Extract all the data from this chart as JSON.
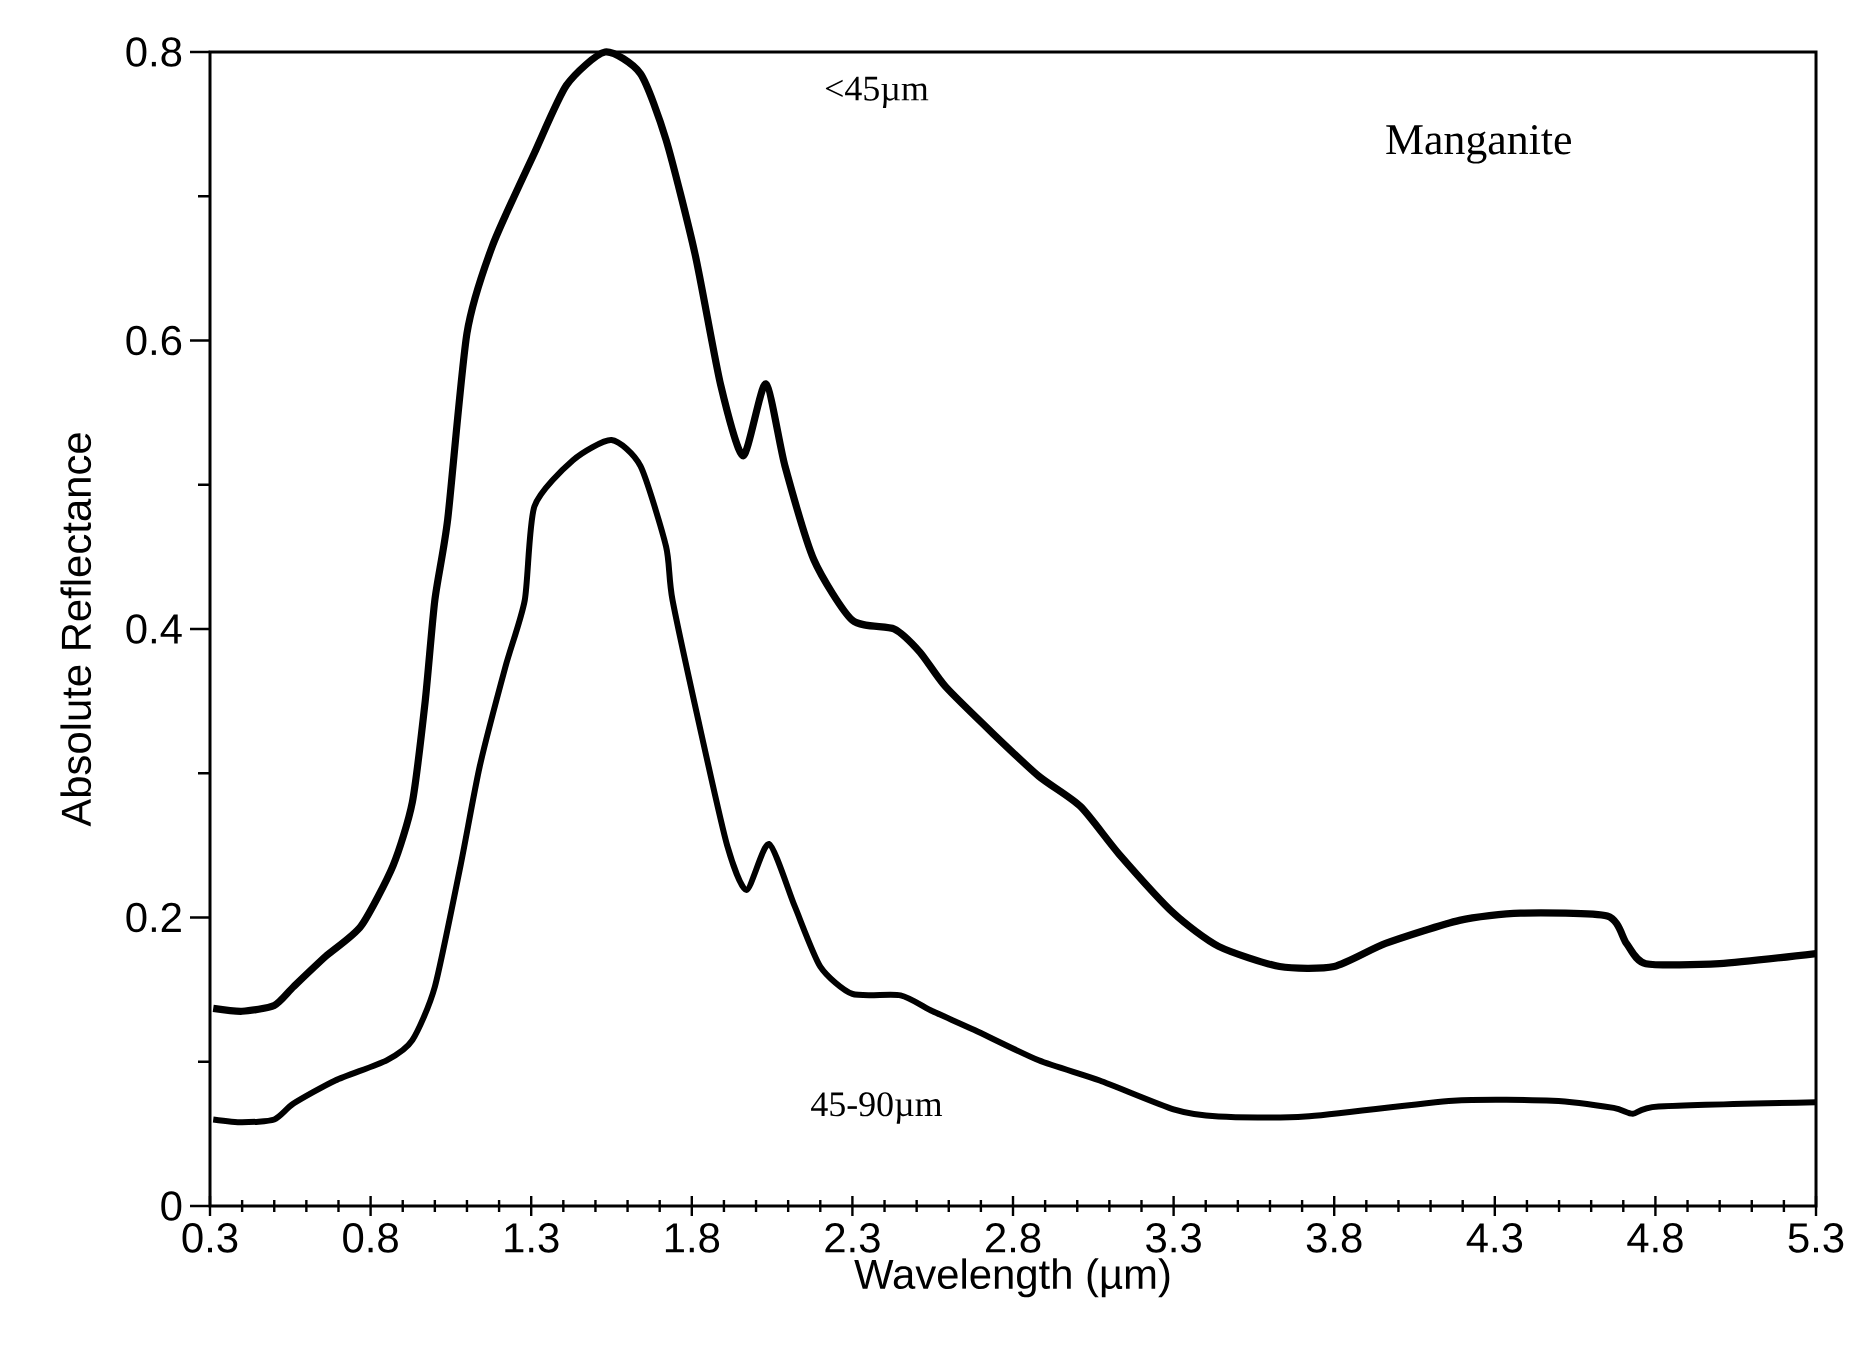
{
  "chart_data": {
    "type": "line",
    "xlabel": "Wavelength (µm)",
    "ylabel": "Absolute Reflectance",
    "xlim": [
      0.3,
      5.3
    ],
    "ylim": [
      0,
      0.8
    ],
    "xticks": [
      0.3,
      0.8,
      1.3,
      1.8,
      2.3,
      2.8,
      3.3,
      3.8,
      4.3,
      4.8,
      5.3
    ],
    "yticks": [
      0,
      0.2,
      0.4,
      0.6,
      0.8
    ],
    "grid": false,
    "marker": "none",
    "line_style": "solid",
    "series": [
      {
        "color": "#000000",
        "x": [
          0.31,
          0.4,
          0.5,
          0.56,
          0.66,
          0.77,
          0.87,
          0.93,
          0.97,
          1.0,
          1.04,
          1.1,
          1.18,
          1.31,
          1.41,
          1.53,
          1.64,
          1.72,
          1.81,
          1.89,
          1.96,
          2.03,
          2.09,
          2.18,
          2.3,
          2.43,
          2.51,
          2.59,
          2.74,
          2.88,
          3.01,
          3.13,
          3.3,
          3.44,
          3.63,
          3.8,
          3.96,
          4.19,
          4.38,
          4.65,
          4.71,
          4.77,
          5.0,
          5.3
        ],
        "values": [
          0.137,
          0.135,
          0.139,
          0.152,
          0.173,
          0.194,
          0.236,
          0.28,
          0.35,
          0.42,
          0.476,
          0.605,
          0.666,
          0.73,
          0.777,
          0.8,
          0.785,
          0.739,
          0.66,
          0.569,
          0.52,
          0.57,
          0.513,
          0.448,
          0.406,
          0.4,
          0.384,
          0.36,
          0.327,
          0.298,
          0.277,
          0.244,
          0.203,
          0.18,
          0.166,
          0.166,
          0.182,
          0.198,
          0.203,
          0.201,
          0.182,
          0.168,
          0.168,
          0.175
        ]
      },
      {
        "color": "#000000",
        "x": [
          0.31,
          0.4,
          0.5,
          0.56,
          0.69,
          0.85,
          0.93,
          1.0,
          1.08,
          1.14,
          1.22,
          1.28,
          1.31,
          1.43,
          1.55,
          1.64,
          1.72,
          1.74,
          1.83,
          1.91,
          1.97,
          2.04,
          2.12,
          2.2,
          2.3,
          2.45,
          2.55,
          2.68,
          2.88,
          3.07,
          3.3,
          3.44,
          3.71,
          4.17,
          4.48,
          4.67,
          4.73,
          4.81,
          5.3
        ],
        "values": [
          0.06,
          0.058,
          0.06,
          0.071,
          0.087,
          0.101,
          0.115,
          0.152,
          0.236,
          0.305,
          0.374,
          0.42,
          0.485,
          0.517,
          0.531,
          0.513,
          0.457,
          0.42,
          0.327,
          0.25,
          0.219,
          0.251,
          0.208,
          0.166,
          0.147,
          0.146,
          0.135,
          0.122,
          0.101,
          0.087,
          0.067,
          0.062,
          0.062,
          0.073,
          0.073,
          0.068,
          0.064,
          0.069,
          0.072
        ]
      }
    ],
    "annotations": [
      "<45µm",
      "45-90µm",
      "Manganite"
    ]
  }
}
